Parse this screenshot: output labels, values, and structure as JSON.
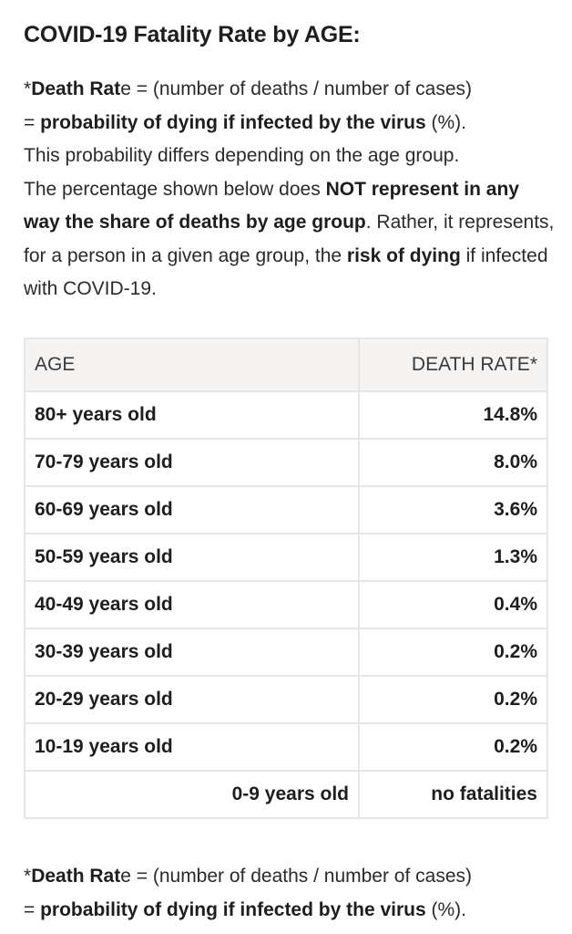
{
  "title": "COVID-19 Fatality Rate by AGE:",
  "intro": {
    "asterisk": "*",
    "term_bold": "Death Rat",
    "term_rest": "e",
    "formula": " = (number of deaths / number of cases)",
    "equals": "= ",
    "definition_bold": "probability of dying if infected by the virus",
    "pct": " (%).",
    "sentence_differs": "This probability differs depending on the age group.",
    "sentence_pct_start": "The percentage shown below does ",
    "not_represent_bold": "NOT represent in any way the share of deaths by age group",
    "rather": ". Rather, it represents, for a person in a given age group, the ",
    "risk_bold": "risk of dying",
    "if_infected": " if infected with COVID-19."
  },
  "table": {
    "headers": {
      "age": "AGE",
      "rate": "DEATH RATE*"
    },
    "rows": [
      {
        "age": "80+ years old",
        "rate": "14.8%"
      },
      {
        "age": "70-79 years old",
        "rate": "8.0%"
      },
      {
        "age": "60-69 years old",
        "rate": "3.6%"
      },
      {
        "age": "50-59 years old",
        "rate": "1.3%"
      },
      {
        "age": "40-49 years old",
        "rate": "0.4%"
      },
      {
        "age": "30-39 years old",
        "rate": "0.2%"
      },
      {
        "age": "20-29 years old",
        "rate": "0.2%"
      },
      {
        "age": "10-19 years old",
        "rate": "0.2%"
      },
      {
        "age": "0-9 years old",
        "rate": "no fatalities"
      }
    ]
  },
  "footnote": {
    "asterisk": "*",
    "term_bold": "Death Rat",
    "term_rest": "e",
    "formula": " = (number of deaths / number of cases)",
    "equals": "= ",
    "definition_bold": "probability of dying if infected by the virus",
    "pct": " (%)."
  }
}
